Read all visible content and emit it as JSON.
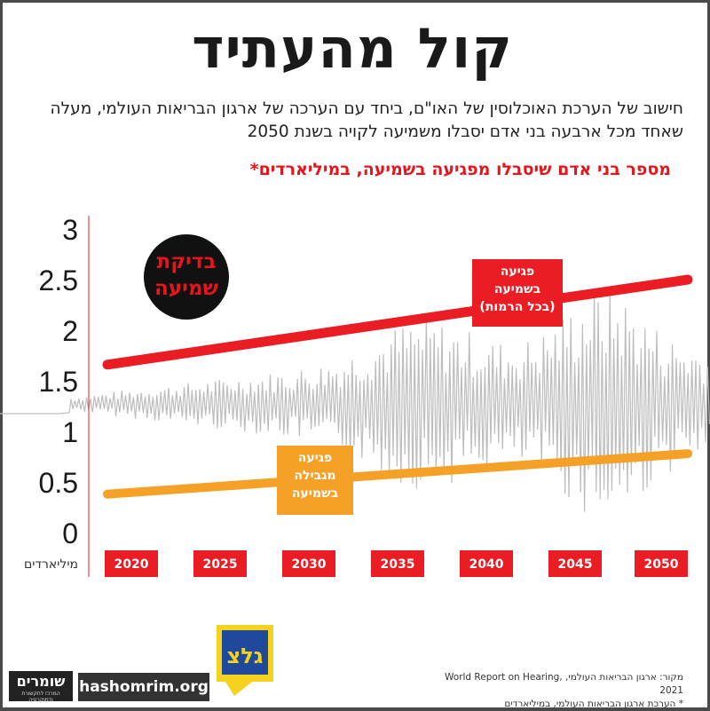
{
  "title": "קול מהעתיד",
  "subtitle": "חישוב של הערכת האוכלוסין של האו\"ם, ביחד עם הערכה של ארגון הבריאות העולמי, מעלה שאחד מכל ארבעה בני אדם יסבלו משמיעה לקויה בשנת 2050",
  "badge": {
    "line1": "בדיקת",
    "line2": "שמיעה"
  },
  "footer": {
    "source": "מקור: ארגון הבריאות העולמי, World Report on Hearing, 2021",
    "note": "* הערכת ארגון הבריאות העולמי, במיליארדים",
    "logo_main": "שומרים",
    "logo_sub": "המרכז לתקשורת ודמוקרטיה",
    "site": "hashomrim.org",
    "glz": "גלצ"
  },
  "colors": {
    "red": "#ea1c24",
    "orange": "#f5a026",
    "wave": "#bdbdbd",
    "background": "#ffffff"
  },
  "chart_data": {
    "type": "line",
    "title": "מספר בני אדם שיסבלו מפגיעה בשמיעה, במיליארדים*",
    "xlabel": "",
    "ylabel": "מיליארדים",
    "x": [
      2020,
      2025,
      2030,
      2035,
      2040,
      2045,
      2050
    ],
    "x_ticks": [
      "2020",
      "2025",
      "2030",
      "2035",
      "2040",
      "2045",
      "2050"
    ],
    "y_ticks": [
      "0",
      "0.5",
      "1",
      "1.5",
      "2",
      "2.5",
      "3"
    ],
    "ylim": [
      0,
      3.2
    ],
    "grid": false,
    "series": [
      {
        "name": "פגיעה בשמיעה (בכל הרמות)",
        "label_lines": [
          "פגיעה",
          "בשמיעה",
          "(בכל הרמות)"
        ],
        "color": "#ea1c24",
        "x": [
          2020,
          2050
        ],
        "values": [
          1.66,
          2.5
        ]
      },
      {
        "name": "פגיעה מגבילה בשמיעה",
        "label_lines": [
          "פגיעה",
          "מגבילה",
          "בשמיעה"
        ],
        "color": "#f5a026",
        "x": [
          2020,
          2050
        ],
        "values": [
          0.38,
          0.78
        ]
      }
    ]
  }
}
